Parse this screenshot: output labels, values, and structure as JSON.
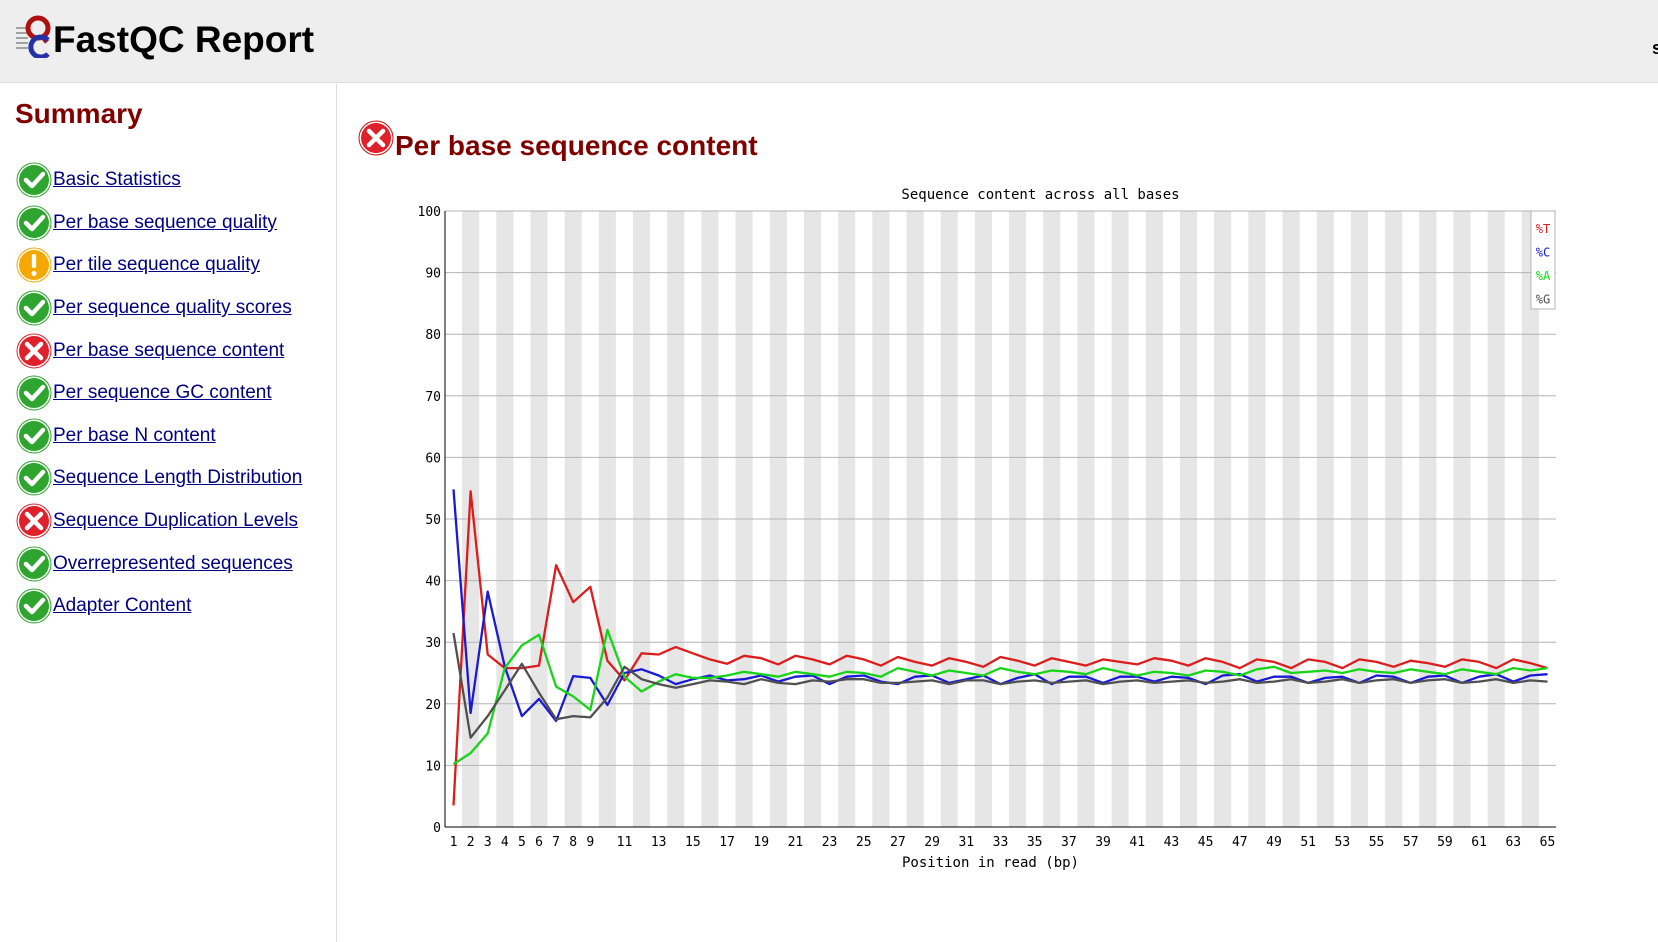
{
  "header": {
    "title": "FastQC Report",
    "right_text": "s"
  },
  "sidebar": {
    "title": "Summary",
    "modules": [
      {
        "label": "Basic Statistics",
        "status": "pass"
      },
      {
        "label": "Per base sequence quality",
        "status": "pass"
      },
      {
        "label": "Per tile sequence quality",
        "status": "warn"
      },
      {
        "label": "Per sequence quality scores",
        "status": "pass"
      },
      {
        "label": "Per base sequence content",
        "status": "fail"
      },
      {
        "label": "Per sequence GC content",
        "status": "pass"
      },
      {
        "label": "Per base N content",
        "status": "pass"
      },
      {
        "label": "Sequence Length Distribution",
        "status": "pass"
      },
      {
        "label": "Sequence Duplication Levels",
        "status": "fail"
      },
      {
        "label": "Overrepresented sequences",
        "status": "pass"
      },
      {
        "label": "Adapter Content",
        "status": "pass"
      }
    ]
  },
  "section": {
    "title": "Per base sequence content",
    "status": "fail",
    "icon": "fail-icon"
  },
  "icons": {
    "pass": "check-icon",
    "warn": "warning-icon",
    "fail": "error-icon"
  },
  "colors": {
    "pass": "#2ea52e",
    "warn": "#f5a800",
    "fail": "#e0202a",
    "title": "#800000",
    "link": "#000080"
  },
  "chart_data": {
    "type": "line",
    "title": "Sequence content across all bases",
    "xlabel": "Position in read (bp)",
    "ylabel": "",
    "ylim": [
      0,
      100
    ],
    "yticks": [
      0,
      10,
      20,
      30,
      40,
      50,
      60,
      70,
      80,
      90,
      100
    ],
    "xticks": [
      "1",
      "2",
      "3",
      "4",
      "5",
      "6",
      "7",
      "8",
      "9",
      "11",
      "13",
      "15",
      "17",
      "19",
      "21",
      "23",
      "25",
      "27",
      "29",
      "31",
      "33",
      "35",
      "37",
      "39",
      "41",
      "43",
      "45",
      "47",
      "49",
      "51",
      "53",
      "55",
      "57",
      "59",
      "61",
      "63",
      "65"
    ],
    "x": [
      1,
      2,
      3,
      4,
      5,
      6,
      7,
      8,
      9,
      10,
      11,
      12,
      13,
      14,
      15,
      16,
      17,
      18,
      19,
      20,
      21,
      22,
      23,
      24,
      25,
      26,
      27,
      28,
      29,
      30,
      31,
      32,
      33,
      34,
      35,
      36,
      37,
      38,
      39,
      40,
      41,
      42,
      43,
      44,
      45,
      46,
      47,
      48,
      49,
      50,
      51,
      52,
      53,
      54,
      55,
      56,
      57,
      58,
      59,
      60,
      61,
      62,
      63,
      64,
      65
    ],
    "grid": true,
    "legend_position": "top-right",
    "series": [
      {
        "name": "%T",
        "color": "#dd1c1c",
        "values": [
          3.5,
          54.5,
          28,
          25.8,
          25.8,
          26.2,
          42.5,
          36.5,
          39,
          27,
          23.8,
          28.2,
          28.0,
          29.2,
          28.2,
          27.2,
          26.5,
          27.8,
          27.4,
          26.4,
          27.8,
          27.2,
          26.4,
          27.8,
          27.2,
          26.2,
          27.6,
          26.8,
          26.2,
          27.4,
          26.8,
          26.0,
          27.6,
          27.0,
          26.2,
          27.4,
          26.8,
          26.2,
          27.2,
          26.8,
          26.4,
          27.4,
          27.0,
          26.2,
          27.4,
          26.8,
          25.8,
          27.2,
          26.8,
          25.8,
          27.2,
          26.8,
          25.8,
          27.2,
          26.8,
          26.0,
          27.0,
          26.6,
          26.0,
          27.2,
          26.8,
          25.8,
          27.2,
          26.6,
          25.8
        ]
      },
      {
        "name": "%C",
        "color": "#1a1ad6",
        "values": [
          54.8,
          18.5,
          38.2,
          26.0,
          18.0,
          20.8,
          17.2,
          24.5,
          24.2,
          19.8,
          25.0,
          25.6,
          24.6,
          23.2,
          24.0,
          24.6,
          23.8,
          24.0,
          24.6,
          23.6,
          24.4,
          24.6,
          23.2,
          24.4,
          24.6,
          23.6,
          23.2,
          24.4,
          24.6,
          23.4,
          24.0,
          24.6,
          23.2,
          24.2,
          24.8,
          23.2,
          24.4,
          24.4,
          23.4,
          24.4,
          24.4,
          23.6,
          24.4,
          24.2,
          23.2,
          24.6,
          24.8,
          23.6,
          24.4,
          24.4,
          23.4,
          24.2,
          24.4,
          23.4,
          24.6,
          24.4,
          23.4,
          24.4,
          24.6,
          23.4,
          24.4,
          24.8,
          23.6,
          24.6,
          24.8
        ]
      },
      {
        "name": "%A",
        "color": "#18d418",
        "values": [
          10.2,
          12.0,
          15.2,
          25.8,
          29.5,
          31.2,
          22.8,
          21.2,
          19.0,
          32.0,
          24.4,
          22.0,
          23.6,
          24.8,
          24.2,
          24.2,
          24.6,
          25.2,
          24.8,
          24.4,
          25.2,
          24.8,
          24.4,
          25.2,
          25.0,
          24.4,
          25.8,
          25.2,
          24.6,
          25.4,
          25.0,
          24.6,
          25.8,
          25.2,
          24.8,
          25.4,
          25.2,
          24.8,
          25.8,
          25.2,
          24.6,
          25.2,
          25.0,
          24.6,
          25.4,
          25.2,
          24.6,
          25.6,
          26.0,
          25.0,
          25.2,
          25.4,
          25.0,
          25.6,
          25.2,
          25.0,
          25.6,
          25.2,
          24.8,
          25.6,
          25.2,
          24.8,
          25.8,
          25.4,
          25.8
        ]
      },
      {
        "name": "%G",
        "color": "#505050",
        "values": [
          31.5,
          14.5,
          18.0,
          22.2,
          26.5,
          21.8,
          17.5,
          18.0,
          17.8,
          21.0,
          26.0,
          24.0,
          23.2,
          22.6,
          23.2,
          23.8,
          23.6,
          23.2,
          24.0,
          23.4,
          23.2,
          23.8,
          23.6,
          24.0,
          24.0,
          23.4,
          23.4,
          23.6,
          23.8,
          23.2,
          23.8,
          23.8,
          23.2,
          23.6,
          23.8,
          23.4,
          23.6,
          23.8,
          23.2,
          23.6,
          23.8,
          23.4,
          23.6,
          23.8,
          23.4,
          23.6,
          24.0,
          23.4,
          23.6,
          24.0,
          23.4,
          23.6,
          24.0,
          23.4,
          23.8,
          24.0,
          23.4,
          23.8,
          24.0,
          23.4,
          23.6,
          24.0,
          23.4,
          23.8,
          23.6
        ]
      }
    ]
  }
}
